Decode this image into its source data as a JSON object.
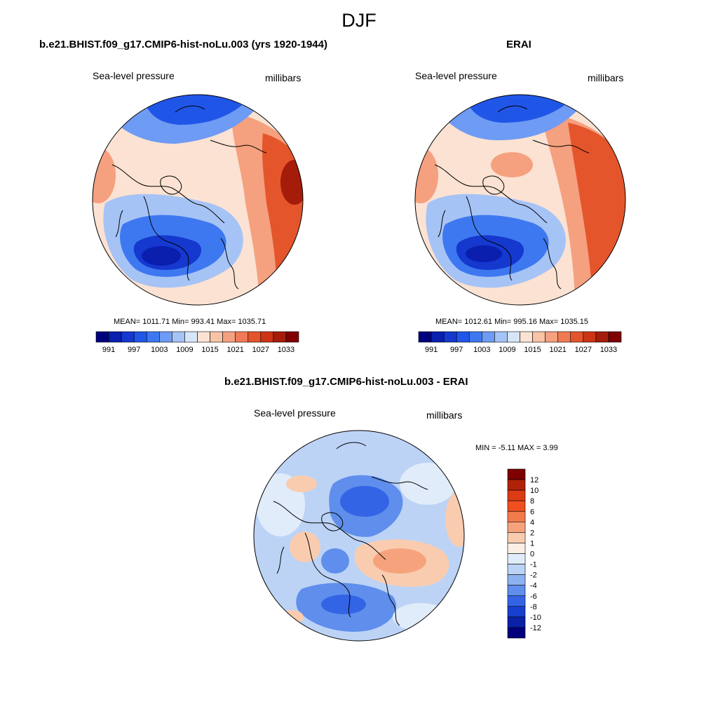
{
  "season": "DJF",
  "panels": [
    {
      "title": "b.e21.BHIST.f09_g17.CMIP6-hist-noLu.003 (yrs 1920-1944)",
      "left_label": "Sea-level pressure",
      "right_label": "millibars",
      "stats": "MEAN= 1011.71  Min= 993.41  Max= 1035.71"
    },
    {
      "title": "ERAI",
      "left_label": "Sea-level pressure",
      "right_label": "millibars",
      "stats": "MEAN= 1012.61  Min= 995.16  Max= 1035.15"
    },
    {
      "title": "b.e21.BHIST.f09_g17.CMIP6-hist-noLu.003 - ERAI",
      "left_label": "Sea-level pressure",
      "right_label": "millibars",
      "stats": "MIN =  -5.11 MAX =   3.99"
    }
  ],
  "colorbar_abs": {
    "tick_labels": [
      "991",
      "997",
      "1003",
      "1009",
      "1015",
      "1021",
      "1027",
      "1033"
    ],
    "colors": [
      "#00007f",
      "#0a1fae",
      "#1538cf",
      "#2056e8",
      "#3d78f0",
      "#6e9bf4",
      "#a6c3f6",
      "#d6e6f8",
      "#fbe2d2",
      "#f8c3a7",
      "#f5a07f",
      "#f07a55",
      "#e4552c",
      "#cc3414",
      "#a51c0a",
      "#7f0000"
    ]
  },
  "colorbar_diff": {
    "tick_labels": [
      "12",
      "10",
      "8",
      "6",
      "4",
      "2",
      "1",
      "0",
      "-1",
      "-2",
      "-4",
      "-6",
      "-8",
      "-10",
      "-12"
    ],
    "colors": [
      "#7f0000",
      "#b2220a",
      "#dd3b14",
      "#f0501f",
      "#f37a4d",
      "#f6a37d",
      "#f9ccb0",
      "#fdeee3",
      "#e1ecfa",
      "#bcd3f6",
      "#8db2f1",
      "#5f8eec",
      "#3464e6",
      "#1840cf",
      "#0a21a8",
      "#00007f"
    ]
  },
  "map_colors": {
    "deep_low": "#1538cf",
    "low": "#3d78f0",
    "mid_low": "#a6c3f6",
    "near_neutral": "#d6e6f8",
    "slight_high": "#fbe2d2",
    "mid_high": "#f5a07f",
    "high": "#e4552c",
    "very_high": "#a51c0a"
  }
}
